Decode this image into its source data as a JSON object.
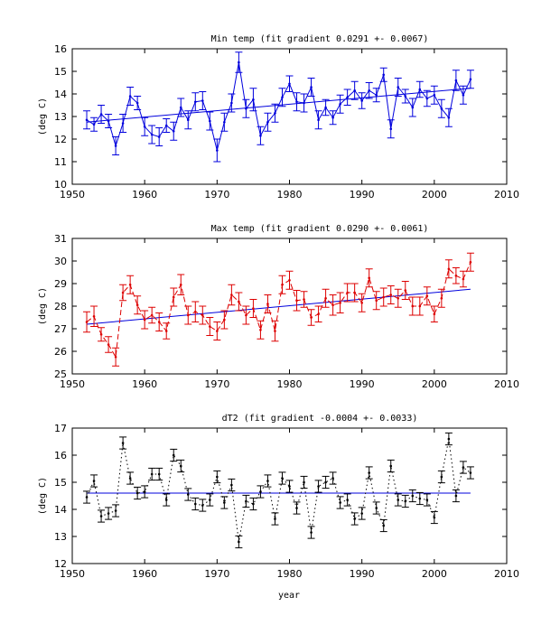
{
  "chart_data": [
    {
      "type": "line",
      "title": "Min temp (fit gradient 0.0291 +- 0.0067)",
      "ylabel": "(deg C)",
      "xlabel": "",
      "xlim": [
        1950,
        2010
      ],
      "ylim": [
        10,
        16
      ],
      "xticks": [
        1950,
        1960,
        1970,
        1980,
        1990,
        2000,
        2010
      ],
      "yticks": [
        10,
        11,
        12,
        13,
        14,
        15,
        16
      ],
      "color": "#0000dd",
      "line_style": "solid",
      "grid": false,
      "series": [
        {
          "x": [
            1952,
            1953,
            1954,
            1955,
            1956,
            1957,
            1958,
            1959,
            1960,
            1961,
            1962,
            1963,
            1964,
            1965,
            1966,
            1967,
            1968,
            1969,
            1970,
            1971,
            1972,
            1973,
            1974,
            1975,
            1976,
            1977,
            1978,
            1979,
            1980,
            1981,
            1982,
            1983,
            1984,
            1985,
            1986,
            1987,
            1988,
            1989,
            1990,
            1991,
            1992,
            1993,
            1994,
            1995,
            1996,
            1997,
            1998,
            1999,
            2000,
            2001,
            2002,
            2003,
            2004,
            2005
          ],
          "y": [
            12.85,
            12.65,
            13.1,
            12.8,
            11.7,
            12.7,
            13.9,
            13.6,
            12.55,
            12.2,
            12.1,
            12.6,
            12.35,
            13.4,
            12.85,
            13.65,
            13.7,
            12.8,
            11.5,
            12.75,
            13.6,
            15.4,
            13.35,
            13.75,
            12.15,
            12.75,
            13.15,
            13.85,
            14.45,
            13.65,
            13.6,
            14.3,
            12.85,
            13.4,
            12.95,
            13.55,
            13.85,
            14.15,
            13.7,
            14.15,
            13.95,
            14.85,
            12.45,
            14.3,
            13.9,
            13.4,
            14.2,
            13.8,
            13.95,
            13.35,
            12.95,
            14.6,
            13.95,
            14.65
          ],
          "error": [
            0.4,
            0.3,
            0.4,
            0.3,
            0.4,
            0.4,
            0.4,
            0.3,
            0.4,
            0.4,
            0.4,
            0.3,
            0.4,
            0.4,
            0.4,
            0.4,
            0.4,
            0.4,
            0.5,
            0.4,
            0.4,
            0.45,
            0.4,
            0.5,
            0.4,
            0.4,
            0.4,
            0.4,
            0.35,
            0.4,
            0.4,
            0.4,
            0.4,
            0.35,
            0.3,
            0.4,
            0.35,
            0.4,
            0.35,
            0.35,
            0.3,
            0.3,
            0.4,
            0.4,
            0.3,
            0.4,
            0.35,
            0.35,
            0.4,
            0.4,
            0.4,
            0.45,
            0.4,
            0.4
          ]
        }
      ],
      "fit": {
        "x": [
          1952,
          2005
        ],
        "y": [
          12.75,
          14.25
        ]
      }
    },
    {
      "type": "line",
      "title": "Max temp (fit gradient 0.0290 +- 0.0061)",
      "ylabel": "(deg C)",
      "xlabel": "",
      "xlim": [
        1950,
        2010
      ],
      "ylim": [
        25,
        31
      ],
      "xticks": [
        1950,
        1960,
        1970,
        1980,
        1990,
        2000,
        2010
      ],
      "yticks": [
        25,
        26,
        27,
        28,
        29,
        30,
        31
      ],
      "color": "#dd0000",
      "line_style": "dashed",
      "grid": false,
      "series": [
        {
          "x": [
            1952,
            1953,
            1954,
            1955,
            1956,
            1957,
            1958,
            1959,
            1960,
            1961,
            1962,
            1963,
            1964,
            1965,
            1966,
            1967,
            1968,
            1969,
            1970,
            1971,
            1972,
            1973,
            1974,
            1975,
            1976,
            1977,
            1978,
            1979,
            1980,
            1981,
            1982,
            1983,
            1984,
            1985,
            1986,
            1987,
            1988,
            1989,
            1990,
            1991,
            1992,
            1993,
            1994,
            1995,
            1996,
            1997,
            1998,
            1999,
            2000,
            2001,
            2002,
            2003,
            2004,
            2005
          ],
          "y": [
            27.3,
            27.55,
            26.75,
            26.3,
            25.75,
            28.6,
            28.95,
            28.05,
            27.4,
            27.6,
            27.3,
            26.9,
            28.4,
            28.95,
            27.6,
            27.75,
            27.6,
            27.1,
            26.9,
            27.4,
            28.5,
            28.2,
            27.6,
            27.9,
            26.95,
            28.1,
            26.9,
            28.95,
            29.15,
            28.25,
            28.3,
            27.5,
            27.65,
            28.35,
            28.05,
            28.15,
            28.6,
            28.6,
            28.15,
            29.25,
            28.25,
            28.4,
            28.5,
            28.35,
            28.7,
            28.0,
            28.0,
            28.45,
            27.65,
            28.35,
            29.65,
            29.35,
            29.2,
            29.95
          ],
          "error": [
            0.45,
            0.45,
            0.3,
            0.35,
            0.4,
            0.35,
            0.4,
            0.4,
            0.4,
            0.35,
            0.4,
            0.35,
            0.4,
            0.45,
            0.4,
            0.45,
            0.4,
            0.4,
            0.4,
            0.4,
            0.45,
            0.4,
            0.4,
            0.4,
            0.4,
            0.4,
            0.45,
            0.4,
            0.4,
            0.45,
            0.35,
            0.35,
            0.35,
            0.4,
            0.45,
            0.45,
            0.4,
            0.4,
            0.4,
            0.4,
            0.4,
            0.4,
            0.4,
            0.4,
            0.4,
            0.4,
            0.4,
            0.4,
            0.35,
            0.4,
            0.4,
            0.35,
            0.35,
            0.4
          ]
        }
      ],
      "fit": {
        "x": [
          1952,
          2005
        ],
        "y": [
          27.2,
          28.75
        ]
      }
    },
    {
      "type": "line",
      "title": "dT2 (fit gradient -0.0004 +- 0.0033)",
      "ylabel": "(deg C)",
      "xlabel": "year",
      "xlim": [
        1950,
        2010
      ],
      "ylim": [
        12,
        17
      ],
      "xticks": [
        1950,
        1960,
        1970,
        1980,
        1990,
        2000,
        2010
      ],
      "yticks": [
        12,
        13,
        14,
        15,
        16,
        17
      ],
      "color": "#000000",
      "line_style": "dotted",
      "grid": false,
      "series": [
        {
          "x": [
            1952,
            1953,
            1954,
            1955,
            1956,
            1957,
            1958,
            1959,
            1960,
            1961,
            1962,
            1963,
            1964,
            1965,
            1966,
            1967,
            1968,
            1969,
            1970,
            1971,
            1972,
            1973,
            1974,
            1975,
            1976,
            1977,
            1978,
            1979,
            1980,
            1981,
            1982,
            1983,
            1984,
            1985,
            1986,
            1987,
            1988,
            1989,
            1990,
            1991,
            1992,
            1993,
            1994,
            1995,
            1996,
            1997,
            1998,
            1999,
            2000,
            2001,
            2002,
            2003,
            2004,
            2005
          ],
          "y": [
            14.45,
            15.05,
            13.75,
            13.85,
            13.95,
            16.45,
            15.15,
            14.6,
            14.65,
            15.3,
            15.3,
            14.35,
            16.0,
            15.6,
            14.55,
            14.2,
            14.15,
            14.35,
            15.2,
            14.25,
            14.9,
            12.8,
            14.3,
            14.2,
            14.65,
            15.05,
            13.65,
            15.15,
            14.85,
            14.05,
            15.0,
            13.15,
            14.85,
            15.0,
            15.15,
            14.25,
            14.35,
            13.65,
            13.85,
            15.35,
            14.05,
            13.4,
            15.6,
            14.35,
            14.3,
            14.5,
            14.4,
            14.35,
            13.7,
            15.2,
            16.6,
            14.5,
            15.55,
            15.35
          ]
        }
      ],
      "fit": {
        "x": [
          1952,
          2005
        ],
        "y": [
          14.6,
          14.6
        ]
      }
    }
  ]
}
